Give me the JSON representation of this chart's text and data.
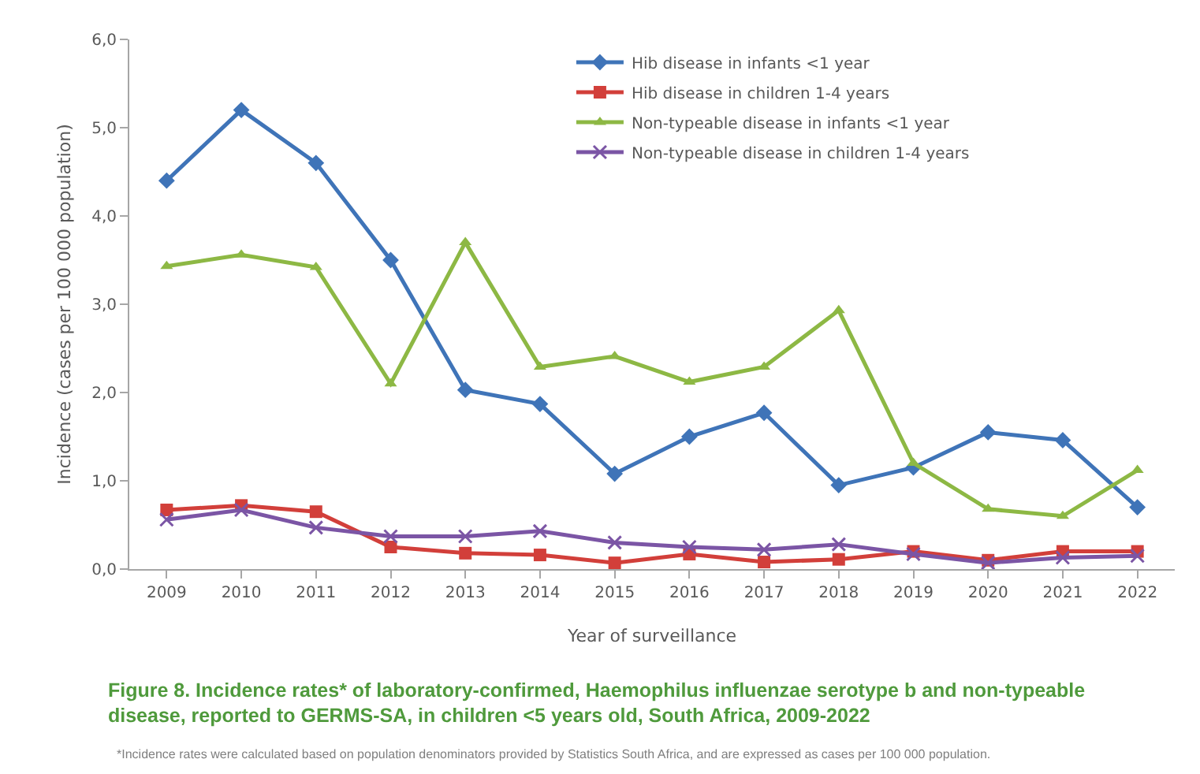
{
  "chart_data": {
    "type": "line",
    "title": "Figure 8. Incidence rates* of laboratory-confirmed, Haemophilus influenzae serotype b and non-typeable disease, reported to GERMS-SA, in children <5 years old, South Africa, 2009-2022",
    "xlabel": "Year of surveillance",
    "ylabel": "Incidence (cases per 100 000 population)",
    "categories": [
      "2009",
      "2010",
      "2011",
      "2012",
      "2013",
      "2014",
      "2015",
      "2016",
      "2017",
      "2018",
      "2019",
      "2020",
      "2021",
      "2022"
    ],
    "series": [
      {
        "name": "Hib disease in infants <1 year",
        "color": "#3f74b8",
        "marker": "diamond",
        "values": [
          4.4,
          5.2,
          4.6,
          3.5,
          2.03,
          1.87,
          1.08,
          1.5,
          1.77,
          0.95,
          1.15,
          1.55,
          1.46,
          0.7
        ]
      },
      {
        "name": "Hib disease in children 1-4 years",
        "color": "#d23f3a",
        "marker": "square",
        "values": [
          0.67,
          0.72,
          0.65,
          0.25,
          0.18,
          0.16,
          0.07,
          0.17,
          0.08,
          0.11,
          0.2,
          0.1,
          0.2,
          0.2
        ]
      },
      {
        "name": "Non-typeable disease in infants <1 year",
        "color": "#8db844",
        "marker": "triangle",
        "values": [
          3.43,
          3.56,
          3.42,
          2.1,
          3.7,
          2.29,
          2.41,
          2.12,
          2.29,
          2.93,
          1.2,
          0.68,
          0.6,
          1.12
        ]
      },
      {
        "name": "Non-typeable disease in children 1-4 years",
        "color": "#7b55a5",
        "marker": "cross",
        "values": [
          0.56,
          0.67,
          0.47,
          0.37,
          0.37,
          0.43,
          0.3,
          0.25,
          0.22,
          0.28,
          0.17,
          0.07,
          0.13,
          0.15
        ]
      }
    ],
    "ylim": [
      0,
      6
    ],
    "yticks": [
      {
        "value": 0,
        "label": "0,0"
      },
      {
        "value": 1,
        "label": "1,0"
      },
      {
        "value": 2,
        "label": "2,0"
      },
      {
        "value": 3,
        "label": "3,0"
      },
      {
        "value": 4,
        "label": "4,0"
      },
      {
        "value": 5,
        "label": "5,0"
      },
      {
        "value": 6,
        "label": "6,0"
      }
    ],
    "grid": false,
    "legend": "top right",
    "line_style": "solid",
    "annotations": [
      "*Incidence rates were calculated based on population denominators provided by Statistics South Africa, and are expressed as cases per 100 000 population."
    ]
  }
}
